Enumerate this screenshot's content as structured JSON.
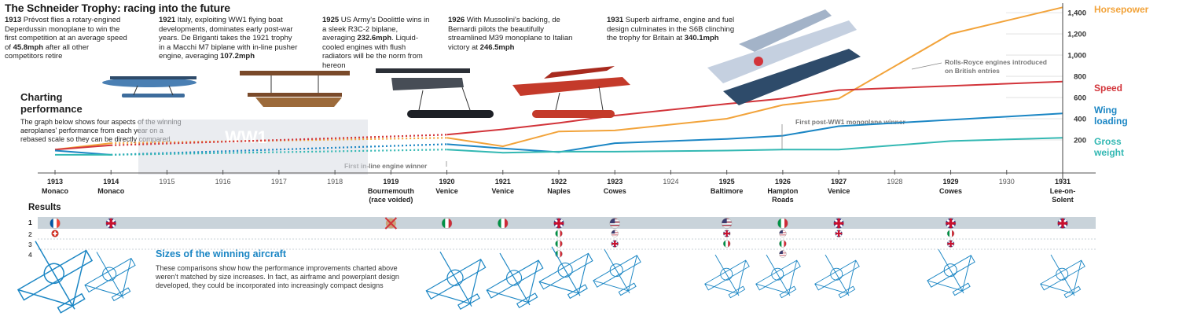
{
  "title": "The Schneider Trophy: racing into the future",
  "charting": {
    "heading_line1": "Charting",
    "heading_line2": "performance",
    "body": "The graph below shows four aspects of the winning aeroplanes' performance from each year on a rebased scale so they can be directly compared"
  },
  "annotations": [
    {
      "year": "1913",
      "pre": " Prévost flies a rotary-engined Deperdussin monoplane to win the first competition at an average speed of ",
      "bold": "45.8mph",
      "post": " after all other competitors retire"
    },
    {
      "year": "1921",
      "pre": " Italy, exploiting WW1 flying boat developments, dominates early post-war years. De Briganti takes the 1921 trophy in a Macchi M7 biplane with in-line pusher engine, averaging ",
      "bold": "107.2mph",
      "post": ""
    },
    {
      "year": "1925",
      "pre": " US Army's Doolittle wins in a sleek R3C-2 biplane, averaging ",
      "bold": "232.6mph",
      "post": ". Liquid-cooled engines with flush radiators will be the norm from hereon"
    },
    {
      "year": "1926",
      "pre": " With Mussolini's backing, de Bernardi pilots the beautifully streamlined M39 monoplane to Italian victory at ",
      "bold": "246.5mph",
      "post": ""
    },
    {
      "year": "1931",
      "pre": " Superb airframe, engine and fuel design culminates in the S6B clinching the trophy for Britain at ",
      "bold": "340.1mph",
      "post": ""
    }
  ],
  "notes": {
    "rolls_royce": "Rolls-Royce engines introduced on British entries",
    "monoplane": "First post-WW1 monoplane winner",
    "inline": "First in-line engine winner",
    "ww1": "WW1"
  },
  "results": {
    "title": "Results",
    "row_labels": [
      "1",
      "2",
      "3",
      "4"
    ]
  },
  "sizes": {
    "title": "Sizes of the winning aircraft",
    "body": "These comparisons show how the performance improvements charted above weren't matched by size increases. In fact, as airframe and powerplant design developed, they could be incorporated into increasingly compact designs"
  },
  "chart_data": {
    "type": "line",
    "title": "Charting performance",
    "y_ticks": [
      "200",
      "400",
      "600",
      "800",
      "1,000",
      "1,200",
      "1,400"
    ],
    "ylim": [
      0,
      1500
    ],
    "x_years": [
      1913,
      1914,
      1915,
      1916,
      1917,
      1918,
      1919,
      1920,
      1921,
      1922,
      1923,
      1924,
      1925,
      1926,
      1927,
      1928,
      1929,
      1930,
      1931
    ],
    "x_labels": [
      {
        "year": "1913",
        "place": "Monaco"
      },
      {
        "year": "1914",
        "place": "Monaco"
      },
      {
        "year": "1915",
        "place": ""
      },
      {
        "year": "1916",
        "place": ""
      },
      {
        "year": "1917",
        "place": ""
      },
      {
        "year": "1918",
        "place": ""
      },
      {
        "year": "1919",
        "place": "Bournemouth",
        "place2": "(race voided)"
      },
      {
        "year": "1920",
        "place": "Venice"
      },
      {
        "year": "1921",
        "place": "Venice"
      },
      {
        "year": "1922",
        "place": "Naples"
      },
      {
        "year": "1923",
        "place": "Cowes"
      },
      {
        "year": "1924",
        "place": ""
      },
      {
        "year": "1925",
        "place": "Baltimore"
      },
      {
        "year": "1926",
        "place": "Hampton",
        "place2": "Roads"
      },
      {
        "year": "1927",
        "place": "Venice"
      },
      {
        "year": "1928",
        "place": ""
      },
      {
        "year": "1929",
        "place": "Cowes"
      },
      {
        "year": "1930",
        "place": ""
      },
      {
        "year": "1931",
        "place": "Lee-on-",
        "place2": "Solent"
      }
    ],
    "series": [
      {
        "name": "Horsepower",
        "color": "#f2a33a",
        "points": [
          [
            1913,
            110
          ],
          [
            1914,
            170
          ],
          [
            1920,
            220
          ],
          [
            1921,
            140
          ],
          [
            1922,
            280
          ],
          [
            1923,
            290
          ],
          [
            1925,
            400
          ],
          [
            1926,
            530
          ],
          [
            1927,
            590
          ],
          [
            1929,
            1200
          ],
          [
            1931,
            1450
          ]
        ],
        "dotted": [
          [
            1914,
            170
          ],
          [
            1920,
            220
          ]
        ]
      },
      {
        "name": "Speed",
        "color": "#d2343a",
        "points": [
          [
            1913,
            110
          ],
          [
            1914,
            150
          ],
          [
            1920,
            250
          ],
          [
            1921,
            300
          ],
          [
            1922,
            360
          ],
          [
            1923,
            430
          ],
          [
            1925,
            540
          ],
          [
            1926,
            590
          ],
          [
            1927,
            670
          ],
          [
            1929,
            710
          ],
          [
            1931,
            750
          ]
        ],
        "dotted": [
          [
            1914,
            150
          ],
          [
            1920,
            250
          ]
        ]
      },
      {
        "name": "Wing loading",
        "color": "#1b86c4",
        "points": [
          [
            1913,
            100
          ],
          [
            1914,
            60
          ],
          [
            1920,
            160
          ],
          [
            1921,
            120
          ],
          [
            1922,
            85
          ],
          [
            1923,
            170
          ],
          [
            1925,
            210
          ],
          [
            1926,
            240
          ],
          [
            1927,
            330
          ],
          [
            1929,
            390
          ],
          [
            1931,
            450
          ]
        ],
        "dotted": [
          [
            1914,
            60
          ],
          [
            1920,
            160
          ]
        ]
      },
      {
        "name": "Gross weight",
        "color": "#33b8b3",
        "points": [
          [
            1913,
            60
          ],
          [
            1914,
            60
          ],
          [
            1920,
            110
          ],
          [
            1921,
            80
          ],
          [
            1922,
            90
          ],
          [
            1923,
            90
          ],
          [
            1925,
            100
          ],
          [
            1926,
            110
          ],
          [
            1927,
            110
          ],
          [
            1929,
            190
          ],
          [
            1931,
            220
          ]
        ],
        "dotted": [
          [
            1914,
            60
          ],
          [
            1920,
            110
          ]
        ]
      }
    ],
    "legend": [
      {
        "lines": [
          "Horsepower"
        ],
        "color": "#f2a33a"
      },
      {
        "lines": [
          "Speed"
        ],
        "color": "#d2343a"
      },
      {
        "lines": [
          "Wing",
          "loading"
        ],
        "color": "#1b86c4"
      },
      {
        "lines": [
          "Gross",
          "weight"
        ],
        "color": "#33b8b3"
      }
    ],
    "results_flags": [
      {
        "year": 1913,
        "places": [
          "fr",
          "ch"
        ]
      },
      {
        "year": 1914,
        "places": [
          "gb"
        ]
      },
      {
        "year": 1919,
        "places": [
          "void"
        ]
      },
      {
        "year": 1920,
        "places": [
          "it"
        ]
      },
      {
        "year": 1921,
        "places": [
          "it"
        ]
      },
      {
        "year": 1922,
        "places": [
          "gb",
          "it",
          "it",
          "it"
        ]
      },
      {
        "year": 1923,
        "places": [
          "us",
          "us",
          "gb"
        ]
      },
      {
        "year": 1925,
        "places": [
          "us",
          "gb",
          "it"
        ]
      },
      {
        "year": 1926,
        "places": [
          "it",
          "us",
          "it",
          "us"
        ]
      },
      {
        "year": 1927,
        "places": [
          "gb",
          "gb"
        ]
      },
      {
        "year": 1929,
        "places": [
          "gb",
          "it",
          "gb"
        ]
      },
      {
        "year": 1931,
        "places": [
          "gb"
        ]
      }
    ]
  }
}
